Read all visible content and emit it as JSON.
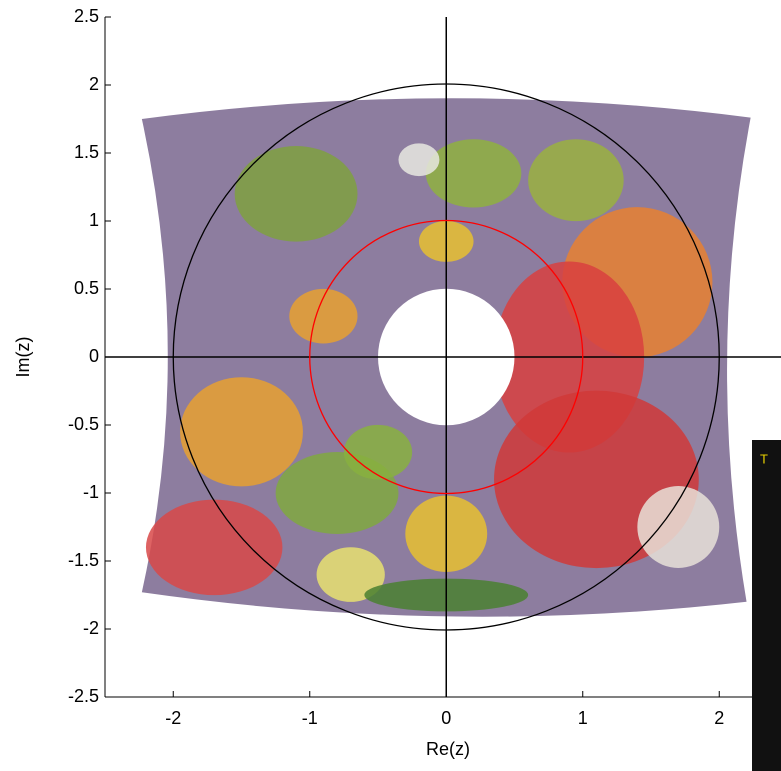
{
  "chart_data": {
    "type": "image",
    "xlabel": "Re(z)",
    "ylabel": "Im(z)",
    "xlim": [
      -2.5,
      2.5
    ],
    "ylim": [
      -2.5,
      2.5
    ],
    "xticks": [
      -2,
      -1,
      0,
      1,
      2
    ],
    "yticks": [
      -2.5,
      -2,
      -1.5,
      -1,
      -0.5,
      0,
      0.5,
      1,
      1.5,
      2,
      2.5
    ],
    "circles": [
      {
        "radius": 2,
        "color": "#000000"
      },
      {
        "radius": 1,
        "color": "#ff0000"
      }
    ],
    "hole_radius": 0.5,
    "overlay_text": "T"
  }
}
